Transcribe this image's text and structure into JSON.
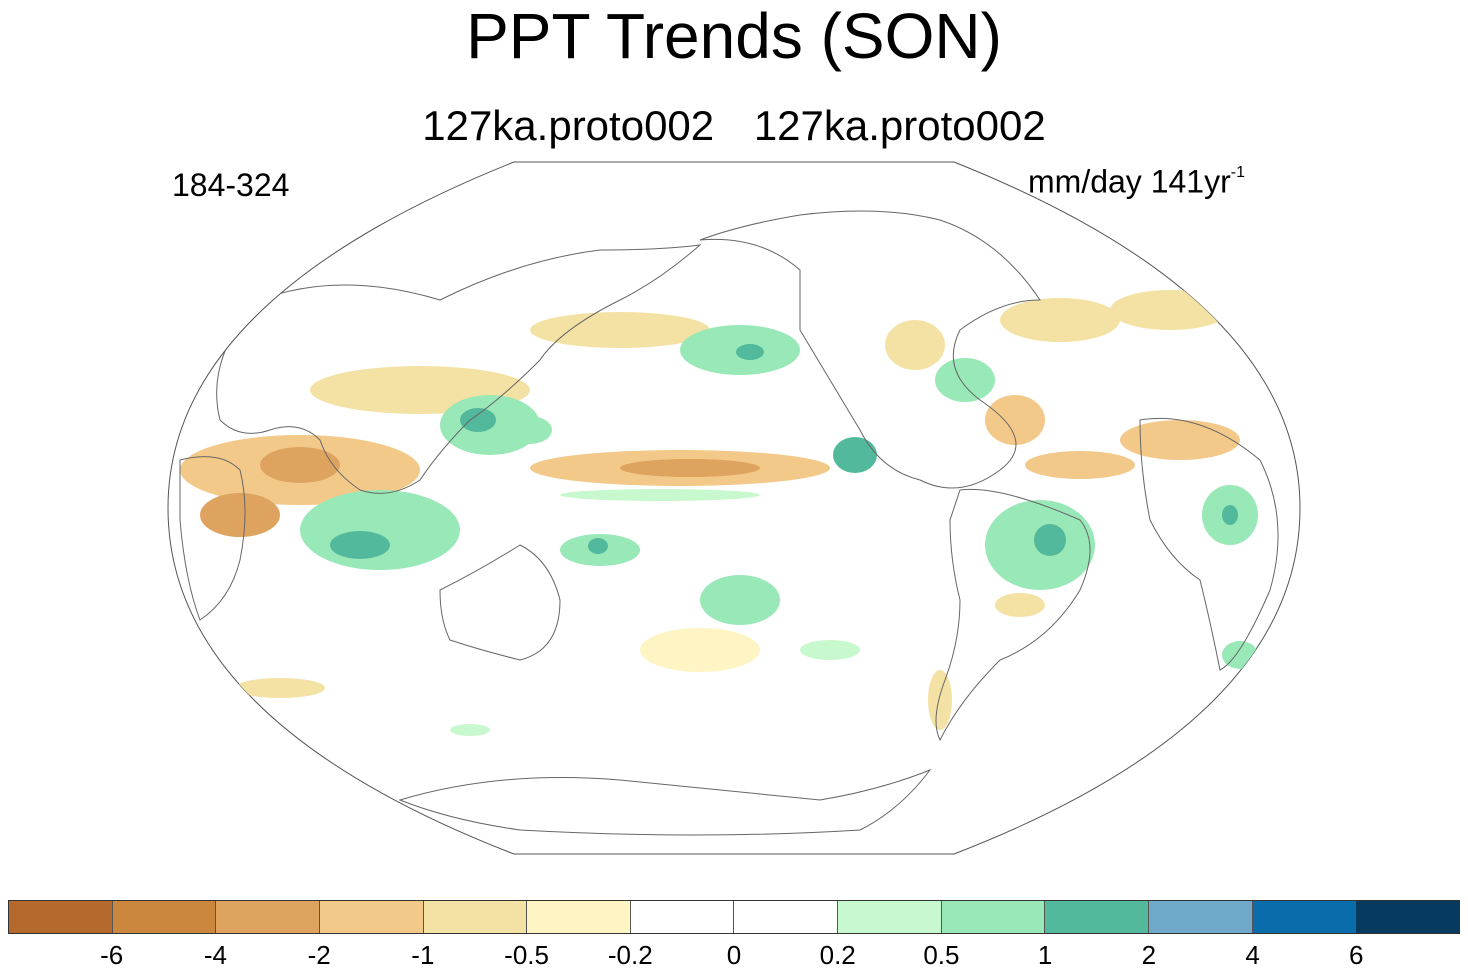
{
  "title": "PPT Trends (SON)",
  "subtitle_left": "127ka.proto002",
  "subtitle_right": "127ka.proto002",
  "years": "184-324",
  "units_main": "mm/day 141yr",
  "units_sup": "-1",
  "colorbar": {
    "colors": [
      "#b5692c",
      "#cc873e",
      "#dea35f",
      "#f3c98a",
      "#f4e1a4",
      "#fff5c4",
      "#ffffff",
      "#ffffff",
      "#c8f8cd",
      "#98e8b8",
      "#52b99c",
      "#6fa8c8",
      "#0b6cac",
      "#063a5e"
    ],
    "tick_labels": [
      "-6",
      "-4",
      "-2",
      "-1",
      "-0.5",
      "-0.2",
      "0",
      "0.2",
      "0.5",
      "1",
      "2",
      "4",
      "6"
    ]
  }
}
